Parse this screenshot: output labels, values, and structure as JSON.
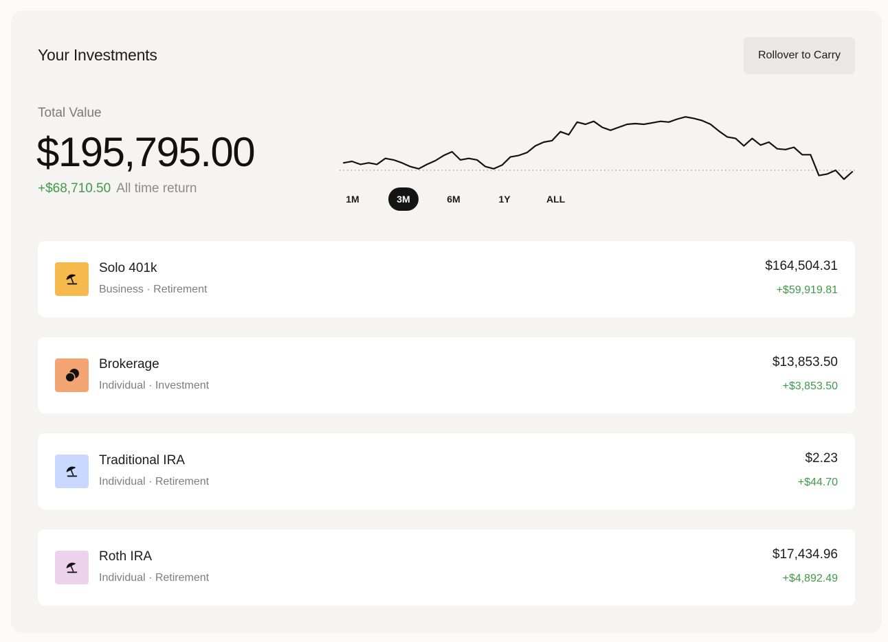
{
  "header": {
    "title": "Your Investments",
    "rollover_label": "Rollover to Carry"
  },
  "summary": {
    "total_label": "Total Value",
    "total_value": "$195,795.00",
    "return_amount": "+$68,710.50",
    "return_label": "All time return"
  },
  "range_tabs": [
    {
      "label": "1M",
      "active": false
    },
    {
      "label": "3M",
      "active": true
    },
    {
      "label": "6M",
      "active": false
    },
    {
      "label": "1Y",
      "active": false
    },
    {
      "label": "ALL",
      "active": false
    }
  ],
  "chart_data": {
    "type": "line",
    "baseline_dotted": true,
    "values": [
      0.1,
      0.12,
      0.08,
      0.1,
      0.08,
      0.16,
      0.14,
      0.1,
      0.05,
      0.02,
      0.08,
      0.13,
      0.2,
      0.25,
      0.14,
      0.16,
      0.14,
      0.05,
      0.02,
      0.07,
      0.18,
      0.2,
      0.24,
      0.33,
      0.38,
      0.4,
      0.52,
      0.48,
      0.65,
      0.62,
      0.66,
      0.58,
      0.54,
      0.58,
      0.62,
      0.63,
      0.62,
      0.64,
      0.66,
      0.65,
      0.69,
      0.72,
      0.7,
      0.67,
      0.62,
      0.53,
      0.45,
      0.43,
      0.33,
      0.43,
      0.34,
      0.38,
      0.29,
      0.28,
      0.31,
      0.21,
      0.21,
      -0.07,
      -0.05,
      0.0,
      -0.12,
      -0.02
    ]
  },
  "accounts": [
    {
      "name": "Solo 401k",
      "type": "Business",
      "category": "Retirement",
      "value": "$164,504.31",
      "gain": "+$59,919.81",
      "icon": "umbrella-icon",
      "color": "#f5b94e"
    },
    {
      "name": "Brokerage",
      "type": "Individual",
      "category": "Investment",
      "value": "$13,853.50",
      "gain": "+$3,853.50",
      "icon": "coins-icon",
      "color": "#f4a574"
    },
    {
      "name": "Traditional IRA",
      "type": "Individual",
      "category": "Retirement",
      "value": "$2.23",
      "gain": "+$44.70",
      "icon": "umbrella-icon",
      "color": "#c8d8ff"
    },
    {
      "name": "Roth IRA",
      "type": "Individual",
      "category": "Retirement",
      "value": "$17,434.96",
      "gain": "+$4,892.49",
      "icon": "umbrella-icon",
      "color": "#ecd2ea"
    }
  ],
  "separator": "·"
}
